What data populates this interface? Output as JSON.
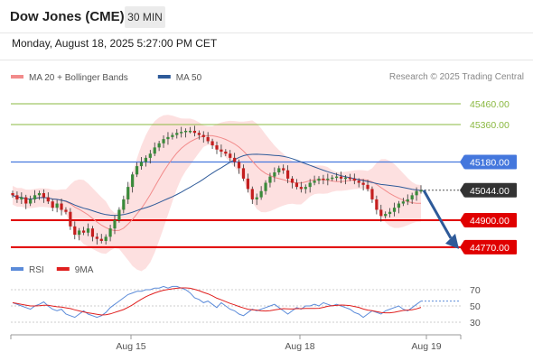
{
  "header": {
    "instrument": "Dow Jones (CME)",
    "timeframe": "30 MIN",
    "datetime": "Monday, August 18, 2025 5:27:00 PM CET",
    "credit": "Research © 2025 Trading Central"
  },
  "legend_main": [
    {
      "label": "MA 20 + Bollinger Bands",
      "color": "#f28b8b"
    },
    {
      "label": "MA 50",
      "color": "#2e5a99"
    }
  ],
  "legend_rsi": [
    {
      "label": "RSI",
      "color": "#5b8bd9"
    },
    {
      "label": "9MA",
      "color": "#e0201f"
    }
  ],
  "colors": {
    "up": "#3a8a3a",
    "down": "#c41e1e",
    "resistance": "#8ab840",
    "pivot": "#4477dd",
    "support": "#e00000",
    "arrow": "#2e5a99"
  },
  "chart_data": [
    {
      "type": "candlestick",
      "ylim": [
        44700,
        45560
      ],
      "x_ticks": [
        "Aug 15",
        "Aug 18",
        "Aug 19"
      ],
      "levels": [
        {
          "value": 45460,
          "label": "45460.00",
          "kind": "resistance"
        },
        {
          "value": 45360,
          "label": "45360.00",
          "kind": "resistance"
        },
        {
          "value": 45180,
          "label": "45180.00",
          "kind": "pivot"
        },
        {
          "value": 45044,
          "label": "45044.00",
          "kind": "last"
        },
        {
          "value": 44900,
          "label": "44900.00",
          "kind": "support"
        },
        {
          "value": 44770,
          "label": "44770.00",
          "kind": "support"
        }
      ],
      "price_path": [
        45020,
        45000,
        45010,
        44980,
        45000,
        45020,
        45030,
        45010,
        44990,
        44960,
        44980,
        44950,
        44940,
        44870,
        44830,
        44850,
        44840,
        44860,
        44820,
        44810,
        44800,
        44820,
        44860,
        44900,
        44950,
        45000,
        45060,
        45120,
        45160,
        45180,
        45200,
        45220,
        45250,
        45270,
        45290,
        45300,
        45310,
        45320,
        45325,
        45330,
        45330,
        45320,
        45310,
        45300,
        45280,
        45260,
        45240,
        45230,
        45220,
        45200,
        45180,
        45150,
        45100,
        45050,
        45000,
        45010,
        45040,
        45080,
        45110,
        45130,
        45150,
        45140,
        45100,
        45080,
        45060,
        45050,
        45060,
        45080,
        45090,
        45100,
        45095,
        45100,
        45105,
        45110,
        45100,
        45105,
        45100,
        45090,
        45080,
        45070,
        45050,
        45000,
        44950,
        44920,
        44930,
        44940,
        44960,
        44980,
        44990,
        45000,
        45020,
        45040,
        45044
      ],
      "forecast": {
        "from": 45044,
        "to": 44770
      }
    },
    {
      "type": "line",
      "name": "RSI",
      "ylim": [
        20,
        80
      ],
      "y_ticks": [
        70,
        50,
        30
      ],
      "rsi_path": [
        54,
        52,
        50,
        48,
        46,
        50,
        52,
        55,
        50,
        46,
        44,
        46,
        40,
        38,
        36,
        40,
        44,
        40,
        38,
        36,
        38,
        42,
        48,
        52,
        56,
        60,
        64,
        66,
        68,
        68,
        70,
        70,
        72,
        72,
        74,
        72,
        74,
        74,
        72,
        70,
        66,
        60,
        58,
        54,
        56,
        52,
        48,
        54,
        50,
        46,
        44,
        40,
        38,
        42,
        46,
        44,
        46,
        48,
        50,
        52,
        48,
        44,
        40,
        44,
        48,
        46,
        50,
        50,
        52,
        50,
        54,
        52,
        50,
        52,
        50,
        48,
        46,
        42,
        40,
        36,
        40,
        44,
        42,
        40,
        44,
        46,
        48,
        50,
        46,
        44,
        48,
        52,
        56
      ]
    }
  ]
}
